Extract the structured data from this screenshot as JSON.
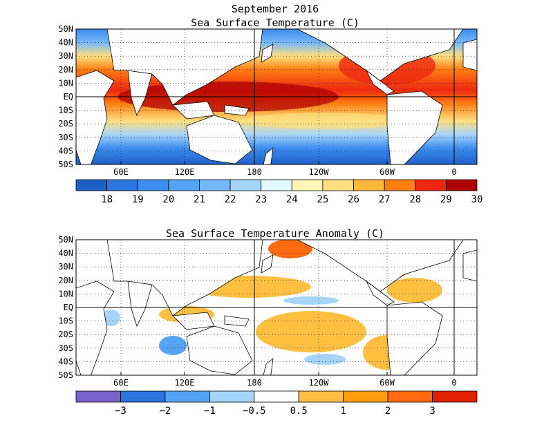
{
  "title": "September 2016",
  "panels": [
    {
      "title": "Sea Surface Temperature (C)",
      "lat_labels": [
        "50N",
        "40N",
        "30N",
        "20N",
        "10N",
        "EQ",
        "10S",
        "20S",
        "30S",
        "40S",
        "50S"
      ],
      "lon_labels": [
        "60E",
        "120E",
        "180",
        "120W",
        "60W",
        "0"
      ],
      "colorbar": {
        "colors": [
          "#1f5fc8",
          "#2c74e0",
          "#3d8cf0",
          "#55a3f5",
          "#75b8f8",
          "#a6d5fb",
          "#e3f8ff",
          "#fff5b8",
          "#ffdf80",
          "#ffb83c",
          "#ff7e10",
          "#ee2810",
          "#b00000"
        ],
        "labels": [
          "18",
          "19",
          "20",
          "21",
          "22",
          "23",
          "24",
          "25",
          "26",
          "27",
          "28",
          "29",
          "30"
        ]
      }
    },
    {
      "title": "Sea Surface Temperature Anomaly (C)",
      "lat_labels": [
        "50N",
        "40N",
        "30N",
        "20N",
        "10N",
        "EQ",
        "10S",
        "20S",
        "30S",
        "40S",
        "50S"
      ],
      "lon_labels": [
        "60E",
        "120E",
        "180",
        "120W",
        "60W",
        "0"
      ],
      "colorbar": {
        "colors": [
          "#7a62d0",
          "#2c74e0",
          "#55a3f5",
          "#a6d5fb",
          "#ffffff",
          "#ffbf40",
          "#ff9d10",
          "#ff6a10",
          "#e02000"
        ],
        "labels": [
          "−3",
          "−2",
          "−1",
          "−0.5",
          "0.5",
          "1",
          "2",
          "3"
        ]
      }
    }
  ]
}
